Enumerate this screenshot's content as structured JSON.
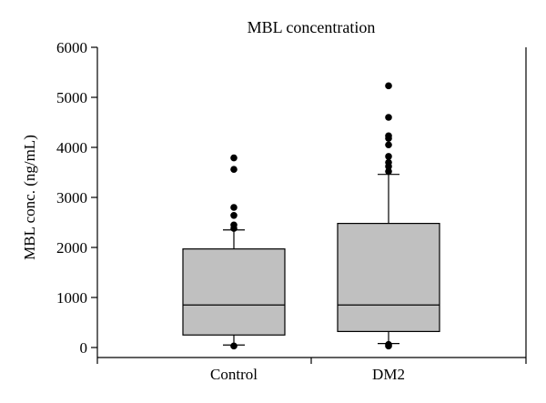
{
  "chart_data": {
    "type": "box",
    "title": "MBL concentration",
    "xlabel": "",
    "ylabel": "MBL conc. (ng/mL)",
    "ylim": [
      0,
      6000
    ],
    "yticks": [
      0,
      1000,
      2000,
      3000,
      4000,
      5000,
      6000
    ],
    "ytick_labels": [
      "0",
      "1000",
      "2000",
      "3000",
      "4000",
      "5000",
      "6000"
    ],
    "grid": false,
    "legend": "none",
    "box_color": "#c0c0c0",
    "categories": [
      "Control",
      "DM2"
    ],
    "boxes": [
      {
        "category": "Control",
        "whisker_low": 50,
        "q1": 250,
        "median": 850,
        "q3": 1970,
        "whisker_high": 2350,
        "outliers": [
          30,
          2380,
          2450,
          2640,
          2800,
          3560,
          3790
        ]
      },
      {
        "category": "DM2",
        "whisker_low": 80,
        "q1": 320,
        "median": 850,
        "q3": 2480,
        "whisker_high": 3460,
        "outliers": [
          30,
          60,
          3520,
          3620,
          3700,
          3820,
          4050,
          4180,
          4230,
          4600,
          5230
        ]
      }
    ]
  }
}
